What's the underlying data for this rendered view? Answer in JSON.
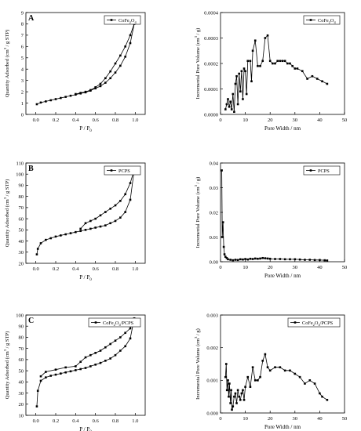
{
  "chart_data": [
    {
      "type": "line",
      "panel_label": "A",
      "xlabel": "P / P0",
      "ylabel": "Quantity Adsorbed (cm3 / g STP)",
      "xlim": [
        -0.1,
        1.1
      ],
      "ylim": [
        0,
        9
      ],
      "xticks": [
        "0.0",
        "0.2",
        "0.4",
        "0.6",
        "0.8",
        "1.0"
      ],
      "yticks": [
        "0",
        "1",
        "2",
        "3",
        "4",
        "5",
        "6",
        "7",
        "8",
        "9"
      ],
      "legend": "CoFe2O4",
      "grid": false,
      "series": [
        {
          "name": "CoFe2O4",
          "branch": "adsorption",
          "x": [
            0.01,
            0.05,
            0.1,
            0.15,
            0.2,
            0.25,
            0.3,
            0.35,
            0.4,
            0.45,
            0.5,
            0.55,
            0.6,
            0.65,
            0.7,
            0.75,
            0.8,
            0.85,
            0.9,
            0.95,
            0.99
          ],
          "y": [
            0.9,
            1.05,
            1.15,
            1.25,
            1.35,
            1.45,
            1.55,
            1.65,
            1.75,
            1.85,
            1.95,
            2.1,
            2.3,
            2.5,
            2.8,
            3.2,
            3.7,
            4.3,
            5.1,
            6.3,
            8.0
          ]
        },
        {
          "name": "",
          "branch": "desorption",
          "x": [
            0.99,
            0.95,
            0.9,
            0.85,
            0.8,
            0.75,
            0.7,
            0.65,
            0.6,
            0.55,
            0.5,
            0.45,
            0.4
          ],
          "y": [
            8.0,
            7.0,
            6.0,
            5.2,
            4.5,
            3.8,
            3.2,
            2.7,
            2.4,
            2.15,
            2.0,
            1.9,
            1.8
          ]
        }
      ]
    },
    {
      "type": "line",
      "xlabel": "Pore Width / nm",
      "ylabel": "Incremental Pore Volume (cm3 / g)",
      "xlim": [
        0,
        50
      ],
      "ylim": [
        0,
        0.0004
      ],
      "xticks": [
        "0",
        "10",
        "20",
        "30",
        "40",
        "50"
      ],
      "yticks": [
        "0.0000",
        "0.0001",
        "0.0002",
        "0.0003",
        "0.0004"
      ],
      "legend": "CoFe2O4",
      "grid": false,
      "series": [
        {
          "name": "CoFe2O4",
          "x": [
            2,
            2.5,
            3,
            3.5,
            4,
            4.5,
            5,
            5.5,
            6,
            6.5,
            7,
            7.5,
            8,
            8.5,
            9,
            9.5,
            10,
            10.5,
            11,
            12,
            12.5,
            13,
            14,
            15,
            16,
            17,
            18,
            19,
            20,
            21,
            22,
            23,
            24,
            25,
            26,
            27,
            28,
            29,
            30,
            31,
            33,
            35,
            37,
            39,
            41,
            43
          ],
          "y": [
            2e-05,
            4e-05,
            6e-05,
            3e-05,
            5e-05,
            2e-05,
            8e-05,
            1e-05,
            0.00012,
            0.00015,
            4e-05,
            0.00016,
            9e-05,
            0.00017,
            6e-05,
            0.00018,
            0.00017,
            8e-05,
            0.00021,
            0.00021,
            0.00013,
            0.00025,
            0.00029,
            0.00019,
            0.00019,
            0.00021,
            0.0003,
            0.00031,
            0.00021,
            0.0002,
            0.0002,
            0.00021,
            0.00021,
            0.00021,
            0.00021,
            0.0002,
            0.0002,
            0.00019,
            0.00018,
            0.00018,
            0.00017,
            0.00014,
            0.00015,
            0.00014,
            0.00013,
            0.00012
          ]
        }
      ]
    },
    {
      "type": "line",
      "panel_label": "B",
      "xlabel": "P / P0",
      "ylabel": "Quantity Adsorbed (cm3 / g STP)",
      "xlim": [
        -0.1,
        1.1
      ],
      "ylim": [
        20,
        110
      ],
      "xticks": [
        "0.0",
        "0.2",
        "0.4",
        "0.6",
        "0.8",
        "1.0"
      ],
      "yticks": [
        "20",
        "30",
        "40",
        "50",
        "60",
        "70",
        "80",
        "90",
        "100",
        "110"
      ],
      "legend": "PCPS",
      "grid": false,
      "series": [
        {
          "name": "PCPS",
          "branch": "adsorption",
          "x": [
            0.01,
            0.02,
            0.05,
            0.1,
            0.15,
            0.2,
            0.25,
            0.3,
            0.35,
            0.4,
            0.45,
            0.5,
            0.55,
            0.6,
            0.65,
            0.7,
            0.75,
            0.8,
            0.85,
            0.9,
            0.95,
            0.99
          ],
          "y": [
            28,
            33,
            38,
            41,
            42.5,
            44,
            45,
            46,
            47,
            48,
            49,
            50,
            51,
            52,
            53,
            54,
            56,
            58,
            61,
            66,
            77,
            104
          ]
        },
        {
          "name": "",
          "branch": "desorption",
          "x": [
            0.99,
            0.95,
            0.9,
            0.85,
            0.8,
            0.75,
            0.7,
            0.65,
            0.6,
            0.55,
            0.5,
            0.45
          ],
          "y": [
            104,
            92,
            82,
            76,
            72,
            69,
            66,
            63,
            60,
            58,
            56,
            51
          ]
        }
      ]
    },
    {
      "type": "line",
      "xlabel": "Pore Width / nm",
      "ylabel": "Incremental Pore Volume (cm3 / g)",
      "xlim": [
        0,
        50
      ],
      "ylim": [
        0,
        0.04
      ],
      "xticks": [
        "0",
        "10",
        "20",
        "30",
        "40",
        "50"
      ],
      "yticks": [
        "0.00",
        "0.01",
        "0.02",
        "0.03",
        "0.04"
      ],
      "legend": "PCPS",
      "grid": false,
      "series": [
        {
          "name": "PCPS",
          "x": [
            0.5,
            0.7,
            1,
            1.3,
            1.6,
            2,
            2.5,
            3,
            4,
            5,
            6,
            7,
            8,
            9,
            10,
            11,
            12,
            13,
            14,
            15,
            16,
            17,
            18,
            19,
            20,
            22,
            24,
            26,
            28,
            30,
            32,
            34,
            36,
            38,
            40,
            42,
            43
          ],
          "y": [
            0.037,
            0.01,
            0.016,
            0.006,
            0.003,
            0.002,
            0.0015,
            0.001,
            0.0008,
            0.0006,
            0.0008,
            0.0007,
            0.001,
            0.0009,
            0.0011,
            0.0009,
            0.0012,
            0.0011,
            0.0013,
            0.0012,
            0.0013,
            0.0015,
            0.0014,
            0.0013,
            0.0012,
            0.0011,
            0.0011,
            0.001,
            0.001,
            0.001,
            0.0009,
            0.0008,
            0.0008,
            0.0007,
            0.0007,
            0.0006,
            0.0005
          ]
        }
      ]
    },
    {
      "type": "line",
      "panel_label": "C",
      "xlabel": "P / P0",
      "ylabel": "Quantity Adsorbed (cm3 / g STP)",
      "xlim": [
        -0.1,
        1.1
      ],
      "ylim": [
        10,
        100
      ],
      "xticks": [
        "0.0",
        "0.2",
        "0.4",
        "0.6",
        "0.8",
        "1.0"
      ],
      "yticks": [
        "10",
        "20",
        "30",
        "40",
        "50",
        "60",
        "70",
        "80",
        "90",
        "100"
      ],
      "legend": "CoFe2O4/PCPS",
      "grid": false,
      "series": [
        {
          "name": "CoFe2O4/PCPS",
          "branch": "adsorption",
          "x": [
            0.01,
            0.02,
            0.05,
            0.1,
            0.15,
            0.2,
            0.25,
            0.3,
            0.35,
            0.4,
            0.45,
            0.5,
            0.55,
            0.6,
            0.65,
            0.7,
            0.75,
            0.8,
            0.85,
            0.9,
            0.95,
            0.99
          ],
          "y": [
            18,
            32,
            41,
            44,
            45.5,
            46.5,
            47.5,
            48.5,
            49.5,
            50.5,
            51.5,
            52.5,
            54,
            55.5,
            57,
            59,
            61,
            64,
            68,
            72,
            79,
            97
          ]
        },
        {
          "name": "",
          "branch": "desorption",
          "x": [
            0.99,
            0.95,
            0.9,
            0.85,
            0.8,
            0.75,
            0.7,
            0.65,
            0.6,
            0.55,
            0.5,
            0.45,
            0.4,
            0.3,
            0.2,
            0.1,
            0.05
          ],
          "y": [
            97,
            88,
            84,
            80,
            77,
            74,
            71,
            68,
            66,
            64,
            62,
            58,
            54,
            53,
            51,
            49,
            45
          ]
        }
      ]
    },
    {
      "type": "line",
      "xlabel": "Pore Width / nm",
      "ylabel": "Incremental Pore Volume (cm3 / g)",
      "xlim": [
        0,
        50
      ],
      "ylim": [
        0,
        0.003
      ],
      "xticks": [
        "0",
        "10",
        "20",
        "30",
        "40",
        "50"
      ],
      "yticks": [
        "0.000",
        "0.001",
        "0.002",
        "0.003"
      ],
      "legend": "CoFe2O4/PCPS",
      "grid": false,
      "series": [
        {
          "name": "CoFe2O4/PCPS",
          "x": [
            2,
            2.3,
            2.6,
            3,
            3.3,
            3.6,
            4,
            4.3,
            4.6,
            5,
            5.5,
            6,
            6.5,
            7,
            7.5,
            8,
            8.5,
            9,
            9.5,
            10,
            11,
            12,
            13,
            14,
            15,
            16,
            17,
            18,
            19,
            20,
            22,
            24,
            26,
            28,
            30,
            32,
            34,
            36,
            38,
            40,
            41,
            43
          ],
          "y": [
            0.0011,
            0.0015,
            0.0007,
            0.001,
            0.0005,
            0.0009,
            0.0003,
            0.0007,
            0.0001,
            0.0002,
            0.0005,
            0.0006,
            0.0003,
            0.0007,
            0.0005,
            0.0004,
            0.0006,
            0.0007,
            0.0004,
            0.0008,
            0.0011,
            0.0008,
            0.0014,
            0.001,
            0.001,
            0.0011,
            0.0016,
            0.0018,
            0.0014,
            0.0013,
            0.0014,
            0.0014,
            0.0013,
            0.0013,
            0.0012,
            0.0011,
            0.0009,
            0.001,
            0.0009,
            0.0006,
            0.0005,
            0.0004
          ]
        }
      ]
    }
  ]
}
